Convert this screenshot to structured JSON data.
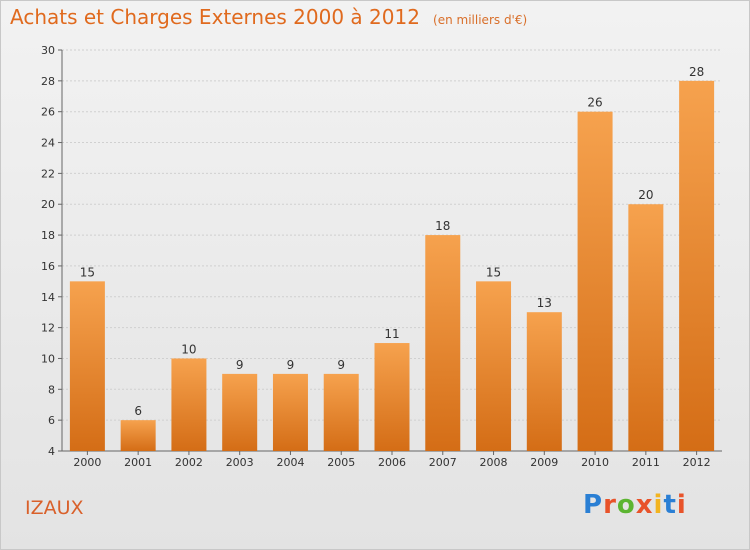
{
  "header": {
    "title": "Achats et Charges Externes 2000 à 2012",
    "subtitle": "(en milliers d'€)"
  },
  "footer": {
    "commune": "IZAUX",
    "logo": "Proxiti"
  },
  "colors": {
    "bar_top": "#f6a24e",
    "bar_bottom": "#d46d16",
    "title": "#e06a1e"
  },
  "chart_data": {
    "type": "bar",
    "title": "Achats et Charges Externes 2000 à 2012",
    "subtitle": "(en milliers d'€)",
    "categories": [
      "2000",
      "2001",
      "2002",
      "2003",
      "2004",
      "2005",
      "2006",
      "2007",
      "2008",
      "2009",
      "2010",
      "2011",
      "2012"
    ],
    "values": [
      15,
      6,
      10,
      9,
      9,
      9,
      11,
      18,
      15,
      13,
      26,
      20,
      28
    ],
    "ylim": [
      4,
      30
    ],
    "yticks": [
      4,
      6,
      8,
      10,
      12,
      14,
      16,
      18,
      20,
      22,
      24,
      26,
      28,
      30
    ],
    "grid": true,
    "xlabel": "",
    "ylabel": ""
  }
}
